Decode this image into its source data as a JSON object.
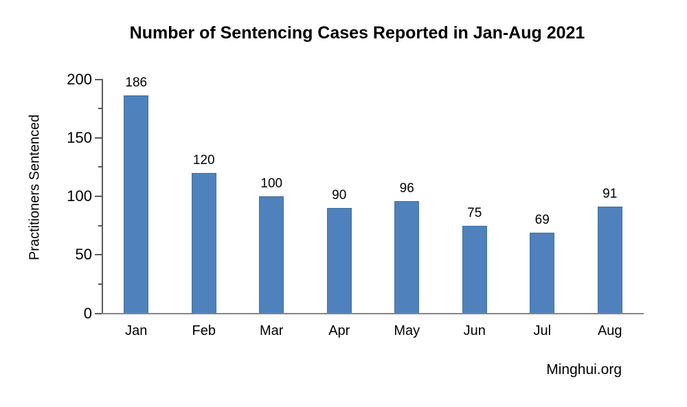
{
  "page": {
    "background": "#ffffff"
  },
  "chart_data": {
    "type": "bar",
    "title": "Number of Sentencing Cases Reported in Jan-Aug 2021",
    "categories": [
      "Jan",
      "Feb",
      "Mar",
      "Apr",
      "May",
      "Jun",
      "Jul",
      "Aug"
    ],
    "values": [
      186,
      120,
      100,
      90,
      96,
      75,
      69,
      91
    ],
    "xlabel": "",
    "ylabel": "Practitioners Sentenced",
    "ylim": [
      0,
      200
    ],
    "yticks_major": [
      0,
      50,
      100,
      150,
      200
    ],
    "yticks_minor": [
      25,
      75,
      125,
      175
    ],
    "bar_value_labels_shown": true,
    "grid": false,
    "legend": false,
    "source_note": "Minghui.org",
    "colors": {
      "bar_fill": "#4f81bd",
      "bar_border": "#41719c",
      "y_axis": "#595959",
      "x_axis": "#868686",
      "text": "#000000"
    }
  }
}
